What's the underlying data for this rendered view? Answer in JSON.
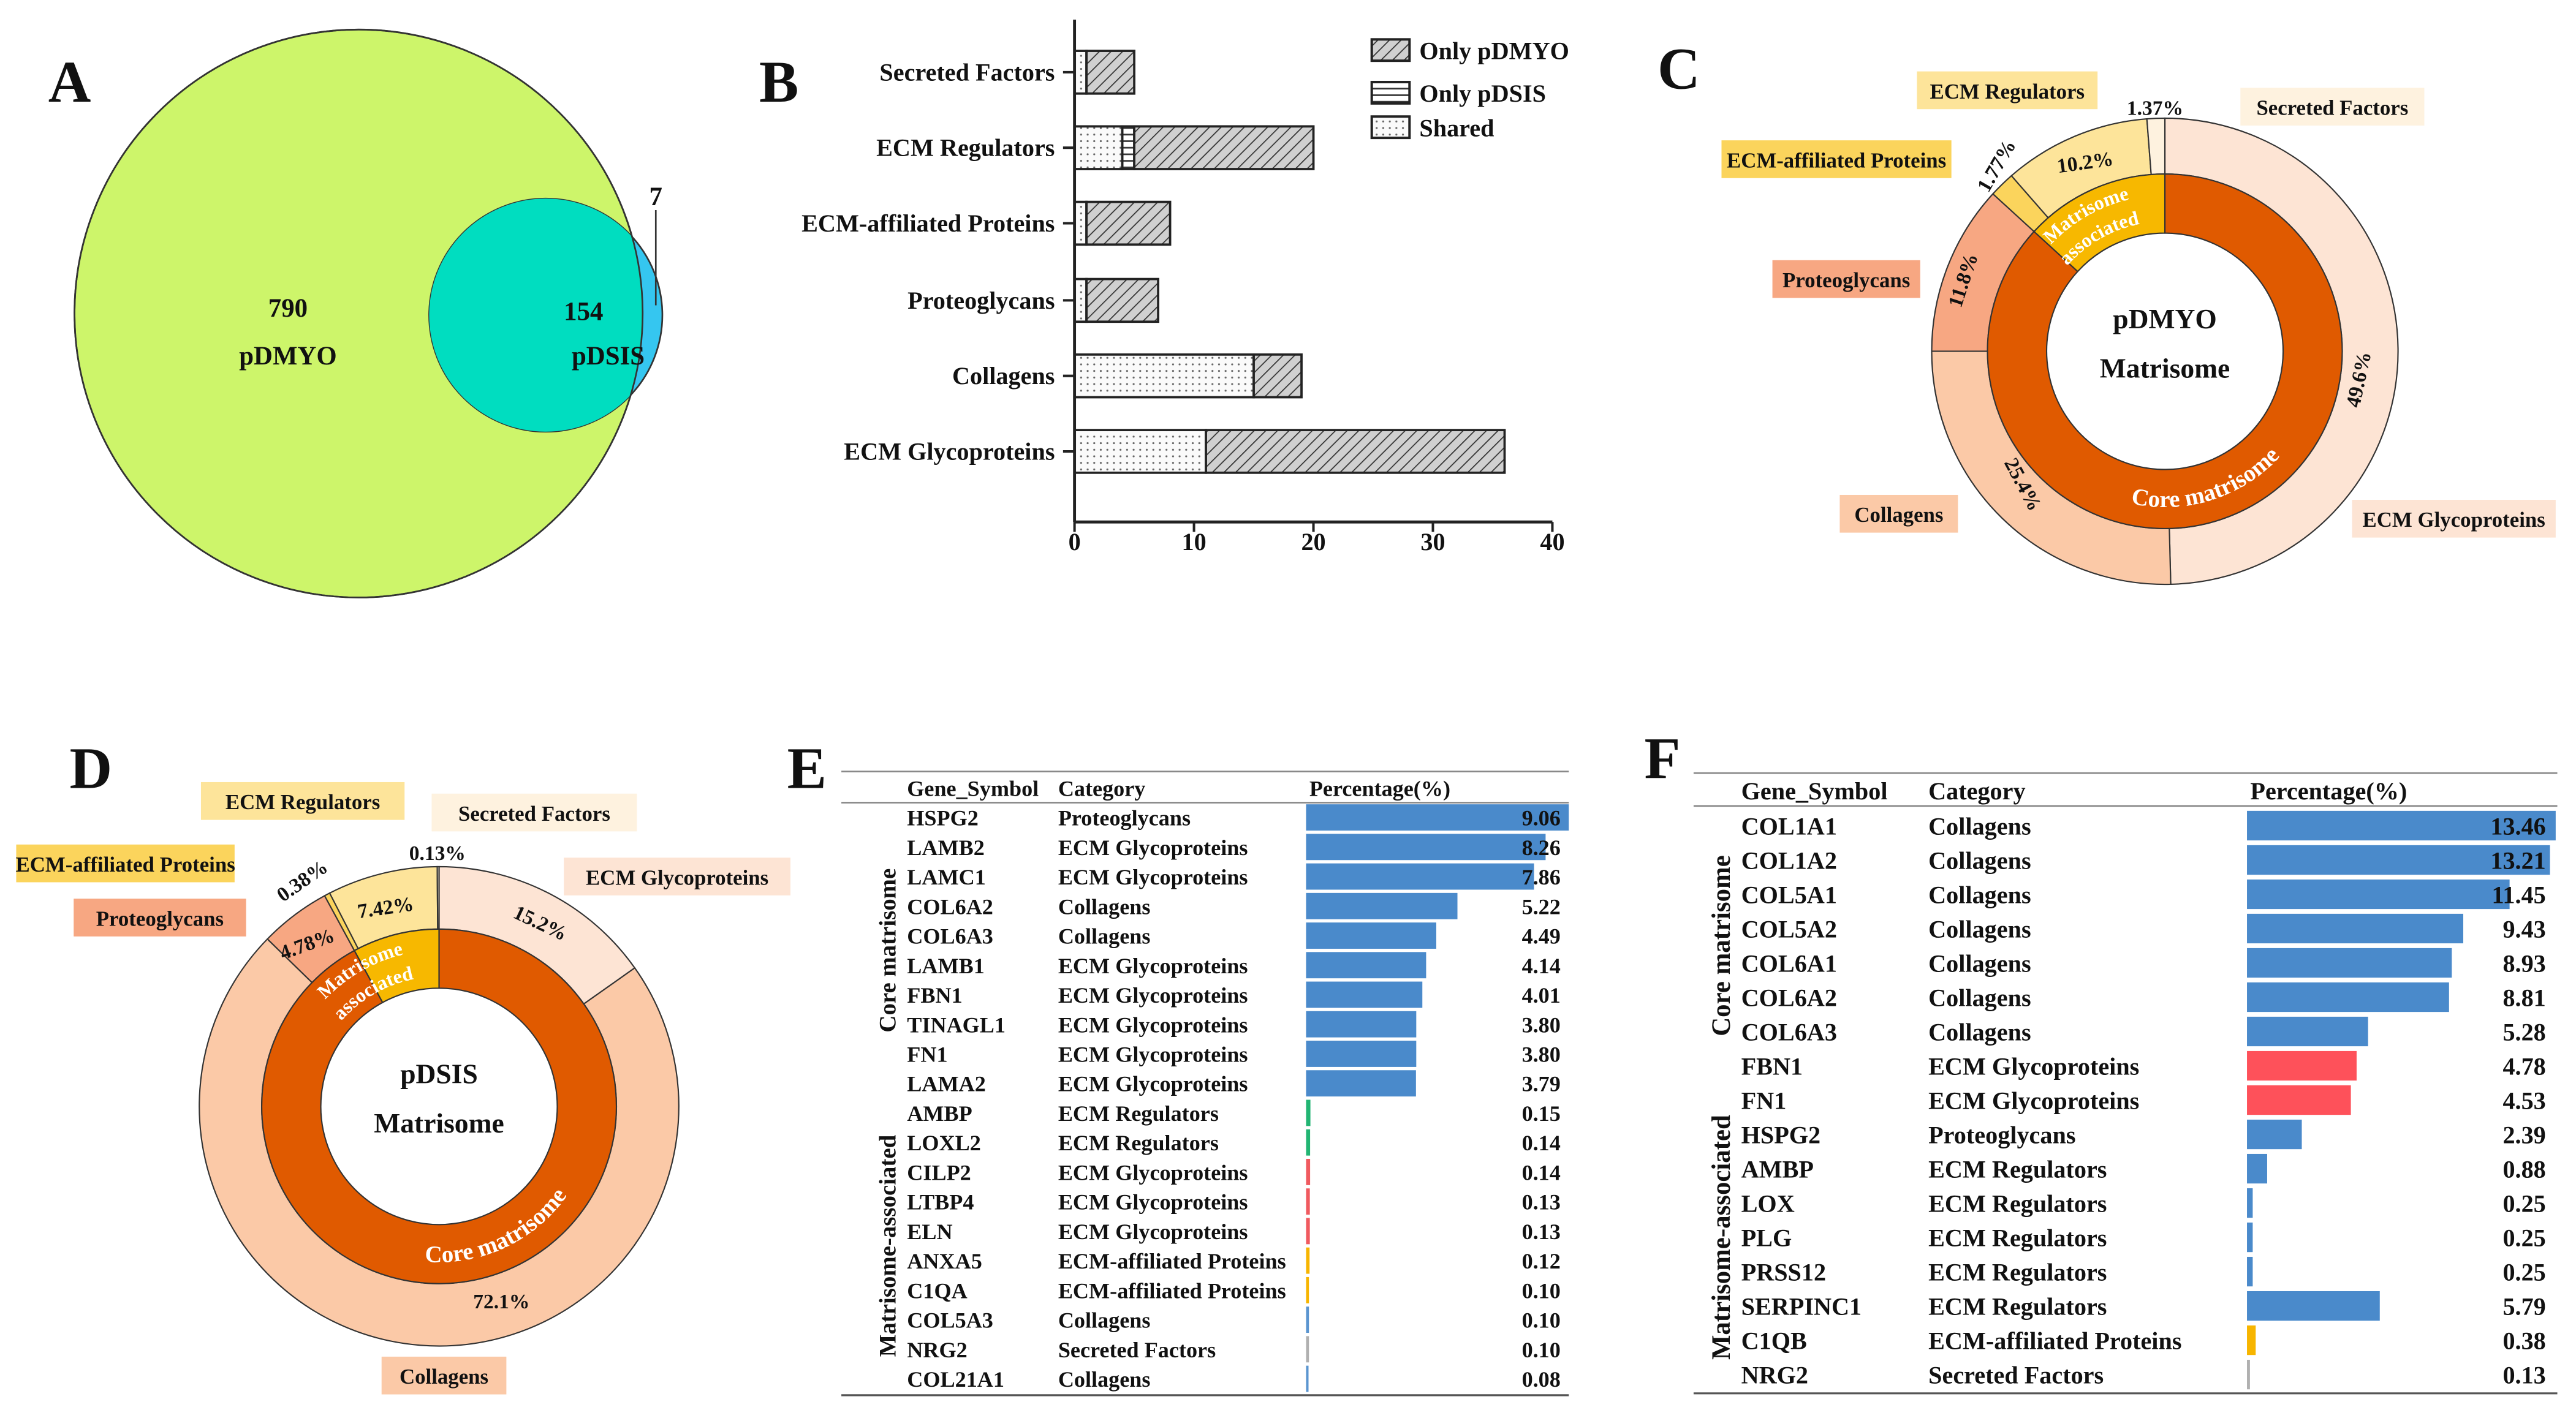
{
  "panel_labels": {
    "A": "A",
    "B": "B",
    "C": "C",
    "D": "D",
    "E": "E",
    "F": "F"
  },
  "chart_data": [
    {
      "panel": "A",
      "type": "venn",
      "sets": [
        {
          "name": "pDMYO",
          "only": "790",
          "color": "#cdf56a"
        },
        {
          "name": "pDSIS",
          "only": "7",
          "color": "#35c6f0"
        }
      ],
      "shared": "154",
      "shared_color": "#00ddc0"
    },
    {
      "panel": "B",
      "type": "bar",
      "orientation": "horizontal",
      "stacked": true,
      "categories": [
        "Secreted Factors",
        "ECM Regulators",
        "ECM-affiliated Proteins",
        "Proteoglycans",
        "Collagens",
        "ECM Glycoproteins"
      ],
      "series": [
        {
          "name": "Only pDMYO",
          "pattern": "diagonal-hatch",
          "values": [
            4,
            15,
            7,
            6,
            4,
            25
          ]
        },
        {
          "name": "Only pDSIS",
          "pattern": "horizontal-lines",
          "values": [
            0,
            1,
            0,
            0,
            0,
            0
          ]
        },
        {
          "name": "Shared",
          "pattern": "dots",
          "values": [
            1,
            4,
            1,
            1,
            15,
            11
          ]
        }
      ],
      "xlim": [
        0,
        40
      ],
      "xticks": [
        "0",
        "10",
        "20",
        "30",
        "40"
      ],
      "legend": "top-right",
      "grid": false
    },
    {
      "panel": "C",
      "type": "pie",
      "style": "nested-donut",
      "center_title": [
        "pDMYO",
        "Matrisome"
      ],
      "inner": [
        {
          "name": "Core matrisome",
          "value": 86.8,
          "color": "#e05a00"
        },
        {
          "name": "Matrisome associated",
          "lines": [
            "Matrisome",
            "associated"
          ],
          "value": 13.2,
          "color": "#f7b800"
        }
      ],
      "outer": [
        {
          "name": "ECM Glycoproteins",
          "label": "49.6%",
          "value": 49.6,
          "color": "#fde4d4"
        },
        {
          "name": "Collagens",
          "label": "25.4%",
          "value": 25.4,
          "color": "#fbc9a7"
        },
        {
          "name": "Proteoglycans",
          "label": "11.8%",
          "value": 11.8,
          "color": "#f7a782"
        },
        {
          "name": "ECM-affiliated Proteins",
          "label": "1.77%",
          "value": 1.77,
          "color": "#fbd45c"
        },
        {
          "name": "ECM Regulators",
          "label": "10.2%",
          "value": 10.2,
          "color": "#fde49a"
        },
        {
          "name": "Secreted Factors",
          "label": "1.37%",
          "value": 1.37,
          "color": "#fef2df"
        }
      ]
    },
    {
      "panel": "D",
      "type": "pie",
      "style": "nested-donut",
      "center_title": [
        "pDSIS",
        "Matrisome"
      ],
      "inner": [
        {
          "name": "Core matrisome",
          "value": 92.08,
          "color": "#e05a00"
        },
        {
          "name": "Matrisome associated",
          "lines": [
            "Matrisome",
            "associated"
          ],
          "value": 7.92,
          "color": "#f7b800"
        }
      ],
      "outer": [
        {
          "name": "ECM Glycoproteins",
          "label": "15.2%",
          "value": 15.2,
          "color": "#fde4d4"
        },
        {
          "name": "Collagens",
          "label": "72.1%",
          "value": 72.1,
          "color": "#fbc9a7"
        },
        {
          "name": "Proteoglycans",
          "label": "4.78%",
          "value": 4.78,
          "color": "#f7a782"
        },
        {
          "name": "ECM-affiliated Proteins",
          "label": "0.38%",
          "value": 0.38,
          "color": "#fbd45c"
        },
        {
          "name": "ECM Regulators",
          "label": "7.42%",
          "value": 7.42,
          "color": "#fde49a"
        },
        {
          "name": "Secreted Factors",
          "label": "0.13%",
          "value": 0.13,
          "color": "#fef2df"
        }
      ]
    },
    {
      "panel": "E",
      "type": "table",
      "columns": [
        "Gene_Symbol",
        "Category",
        "Percentage(%)"
      ],
      "groups": [
        {
          "label": "Core matrisome",
          "rows": [
            0,
            9
          ]
        },
        {
          "label": "Matrisome-associated",
          "rows": [
            10,
            19
          ]
        }
      ],
      "rows": [
        {
          "gene": "HSPG2",
          "category": "Proteoglycans",
          "value": "9.06",
          "color": "#4a8acb"
        },
        {
          "gene": "LAMB2",
          "category": "ECM Glycoproteins",
          "value": "8.26",
          "color": "#4a8acb"
        },
        {
          "gene": "LAMC1",
          "category": "ECM Glycoproteins",
          "value": "7.86",
          "color": "#4a8acb"
        },
        {
          "gene": "COL6A2",
          "category": "Collagens",
          "value": "5.22",
          "color": "#4a8acb"
        },
        {
          "gene": "COL6A3",
          "category": "Collagens",
          "value": "4.49",
          "color": "#4a8acb"
        },
        {
          "gene": "LAMB1",
          "category": "ECM Glycoproteins",
          "value": "4.14",
          "color": "#4a8acb"
        },
        {
          "gene": "FBN1",
          "category": "ECM Glycoproteins",
          "value": "4.01",
          "color": "#4a8acb"
        },
        {
          "gene": "TINAGL1",
          "category": "ECM Glycoproteins",
          "value": "3.80",
          "color": "#4a8acb"
        },
        {
          "gene": "FN1",
          "category": "ECM Glycoproteins",
          "value": "3.80",
          "color": "#4a8acb"
        },
        {
          "gene": "LAMA2",
          "category": "ECM Glycoproteins",
          "value": "3.79",
          "color": "#4a8acb"
        },
        {
          "gene": "AMBP",
          "category": "ECM Regulators",
          "value": "0.15",
          "color": "#22b573"
        },
        {
          "gene": "LOXL2",
          "category": "ECM Regulators",
          "value": "0.14",
          "color": "#22b573"
        },
        {
          "gene": "CILP2",
          "category": "ECM Glycoproteins",
          "value": "0.14",
          "color": "#f05a5f"
        },
        {
          "gene": "LTBP4",
          "category": "ECM Glycoproteins",
          "value": "0.13",
          "color": "#f05a5f"
        },
        {
          "gene": "ELN",
          "category": "ECM Glycoproteins",
          "value": "0.13",
          "color": "#f05a5f"
        },
        {
          "gene": "ANXA5",
          "category": "ECM-affiliated Proteins",
          "value": "0.12",
          "color": "#f7b500"
        },
        {
          "gene": "C1QA",
          "category": "ECM-affiliated Proteins",
          "value": "0.10",
          "color": "#f7b500"
        },
        {
          "gene": "COL5A3",
          "category": "Collagens",
          "value": "0.10",
          "color": "#5b95d0"
        },
        {
          "gene": "NRG2",
          "category": "Secreted Factors",
          "value": "0.10",
          "color": "#b0b0b0"
        },
        {
          "gene": "COL21A1",
          "category": "Collagens",
          "value": "0.08",
          "color": "#5b95d0"
        }
      ]
    },
    {
      "panel": "F",
      "type": "table",
      "columns": [
        "Gene_Symbol",
        "Category",
        "Percentage(%)"
      ],
      "groups": [
        {
          "label": "Core matrisome",
          "rows": [
            0,
            7
          ]
        },
        {
          "label": "Matrisome-associated",
          "rows": [
            8,
            16
          ]
        }
      ],
      "rows": [
        {
          "gene": "COL1A1",
          "category": "Collagens",
          "value": "13.46",
          "color": "#4a8acb"
        },
        {
          "gene": "COL1A2",
          "category": "Collagens",
          "value": "13.21",
          "color": "#4a8acb"
        },
        {
          "gene": "COL5A1",
          "category": "Collagens",
          "value": "11.45",
          "color": "#4a8acb"
        },
        {
          "gene": "COL5A2",
          "category": "Collagens",
          "value": "9.43",
          "color": "#4a8acb"
        },
        {
          "gene": "COL6A1",
          "category": "Collagens",
          "value": "8.93",
          "color": "#4a8acb"
        },
        {
          "gene": "COL6A2",
          "category": "Collagens",
          "value": "8.81",
          "color": "#4a8acb"
        },
        {
          "gene": "COL6A3",
          "category": "Collagens",
          "value": "5.28",
          "color": "#4a8acb"
        },
        {
          "gene": "FBN1",
          "category": "ECM Glycoproteins",
          "value": "4.78",
          "color": "#fe515a"
        },
        {
          "gene": "FN1",
          "category": "ECM Glycoproteins",
          "value": "4.53",
          "color": "#fe515a"
        },
        {
          "gene": "HSPG2",
          "category": "Proteoglycans",
          "value": "2.39",
          "color": "#4a8acb"
        },
        {
          "gene": "AMBP",
          "category": "ECM Regulators",
          "value": "0.88",
          "color": "#4a8acb"
        },
        {
          "gene": "LOX",
          "category": "ECM Regulators",
          "value": "0.25",
          "color": "#4a8acb"
        },
        {
          "gene": "PLG",
          "category": "ECM Regulators",
          "value": "0.25",
          "color": "#4a8acb"
        },
        {
          "gene": "PRSS12",
          "category": "ECM Regulators",
          "value": "0.25",
          "color": "#4a8acb"
        },
        {
          "gene": "SERPINC1",
          "category": "ECM Regulators",
          "value": "5.79",
          "color": "#4a8acb"
        },
        {
          "gene": "C1QB",
          "category": "ECM-affiliated Proteins",
          "value": "0.38",
          "color": "#f7b500"
        },
        {
          "gene": "NRG2",
          "category": "Secreted Factors",
          "value": "0.13",
          "color": "#b0b0b0"
        }
      ]
    }
  ]
}
